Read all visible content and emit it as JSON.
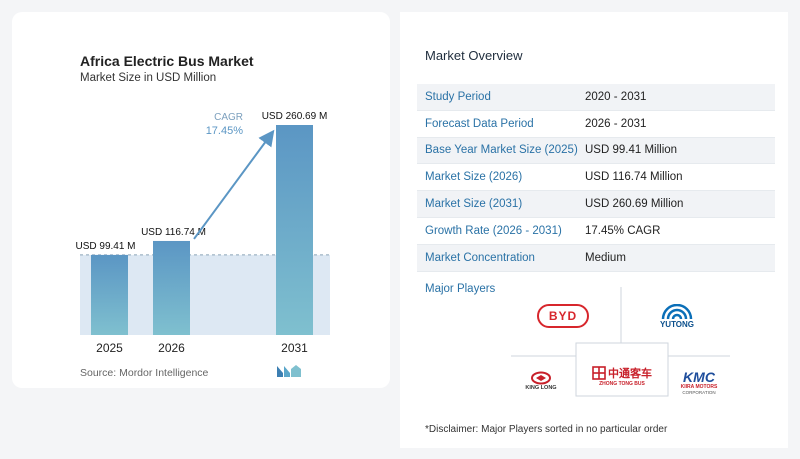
{
  "chart": {
    "title": "Africa Electric Bus Market",
    "subtitle": "Market Size in USD Million",
    "source": "Source:  Mordor Intelligence",
    "cagr_label": "CAGR",
    "cagr_value": "17.45%"
  },
  "chart_data": {
    "type": "bar",
    "title": "Africa Electric Bus Market",
    "subtitle": "Market Size in USD Million",
    "categories": [
      "2025",
      "2026",
      "2031"
    ],
    "values": [
      99.41,
      116.74,
      260.69
    ],
    "data_labels": [
      "USD 99.41 M",
      "USD 116.74 M",
      "USD 260.69 M"
    ],
    "reference_line": 99.41,
    "annotation": "CAGR 17.45%",
    "colors": {
      "bar_top": "#5b96c4",
      "bar_bottom": "#7fc0cf",
      "shade": "#dde8f3",
      "arrow": "#5b96c4"
    }
  },
  "overview": {
    "title": "Market Overview",
    "rows": [
      {
        "label": "Study Period",
        "value": "2020 - 2031"
      },
      {
        "label": "Forecast Data Period",
        "value": "2026 - 2031"
      },
      {
        "label": "Base Year Market Size (2025)",
        "value": "USD 99.41 Million"
      },
      {
        "label": "Market Size (2026)",
        "value": "USD 116.74 Million"
      },
      {
        "label": "Market Size (2031)",
        "value": "USD 260.69 Million"
      },
      {
        "label": "Growth Rate (2026 - 2031)",
        "value": "17.45% CAGR"
      },
      {
        "label": "Market Concentration",
        "value": "Medium"
      }
    ]
  },
  "players": {
    "title": "Major Players",
    "byd": "BYD",
    "yutong": "YUTONG",
    "king_long": "KING LONG",
    "zhongtong_cn": "中通客车",
    "zhongtong_en": "ZHONG TONG BUS",
    "kmc": "KMC",
    "kiira_1": "KIIRA MOTORS",
    "kiira_2": "CORPORATION"
  },
  "disclaimer": "*Disclaimer: Major Players sorted in no particular order"
}
